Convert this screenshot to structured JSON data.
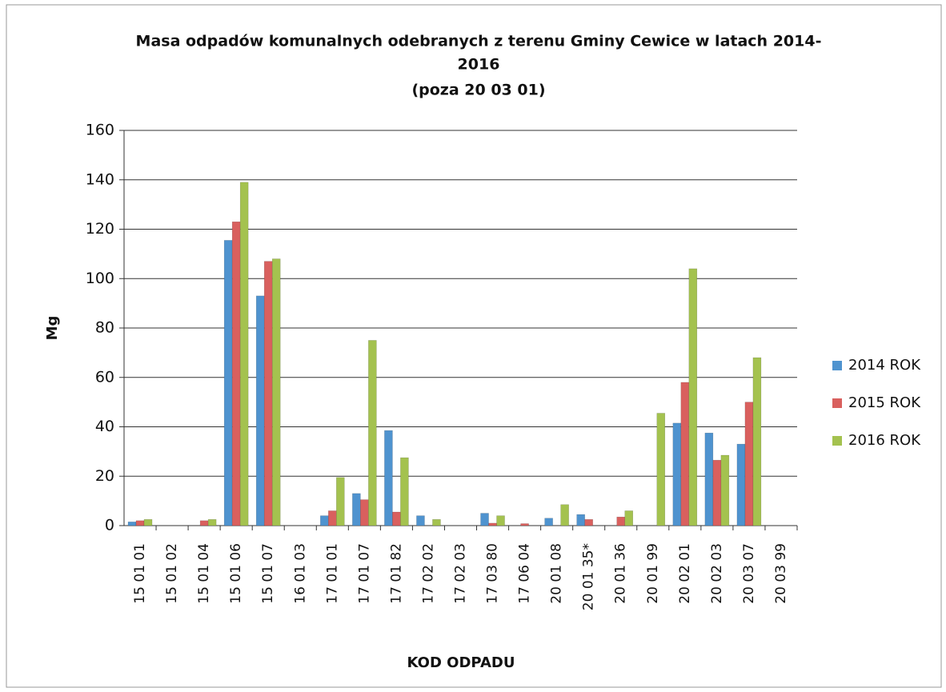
{
  "chart_data": {
    "type": "bar",
    "title": [
      "Masa odpadów komunalnych odebranych z terenu Gminy Cewice w latach 2014-",
      "2016",
      "(poza 20 03 01)"
    ],
    "y_label": "Mg",
    "x_label": "KOD ODPADU",
    "categories": [
      "15 01 01",
      "15 01 02",
      "15 01 04",
      "15 01 06",
      "15 01 07",
      "16 01 03",
      "17 01 01",
      "17 01 07",
      "17 01 82",
      "17 02 02",
      "17 02 03",
      "17 03 80",
      "17 06 04",
      "20 01 08",
      "20 01 35*",
      "20 01 36",
      "20 01 99",
      "20 02 01",
      "20 02 03",
      "20 03 07",
      "20 03 99"
    ],
    "series": [
      {
        "name": "2014 ROK",
        "color": "#4f93cf",
        "values": [
          1.5,
          0,
          0,
          115.5,
          93,
          0,
          4,
          13,
          38.5,
          4,
          0,
          5,
          0,
          3,
          4.5,
          0,
          0,
          41.5,
          37.5,
          33,
          0
        ]
      },
      {
        "name": "2015 ROK",
        "color": "#d9605e",
        "values": [
          2,
          0,
          2,
          123,
          107,
          0,
          6,
          10.5,
          5.5,
          0,
          0,
          1,
          0.8,
          0,
          2.5,
          3.5,
          0,
          58,
          26.5,
          50,
          0
        ]
      },
      {
        "name": "2016 ROK",
        "color": "#a4c24f",
        "values": [
          2.5,
          0,
          2.5,
          139,
          108,
          0,
          19.5,
          75,
          27.5,
          2.5,
          0,
          4,
          0,
          8.5,
          0,
          6,
          45.5,
          104,
          28.5,
          68,
          0
        ]
      }
    ],
    "ylim": [
      0,
      160
    ],
    "yticks": [
      0,
      20,
      40,
      60,
      80,
      100,
      120,
      140,
      160
    ],
    "grid": true,
    "legend": "right"
  }
}
